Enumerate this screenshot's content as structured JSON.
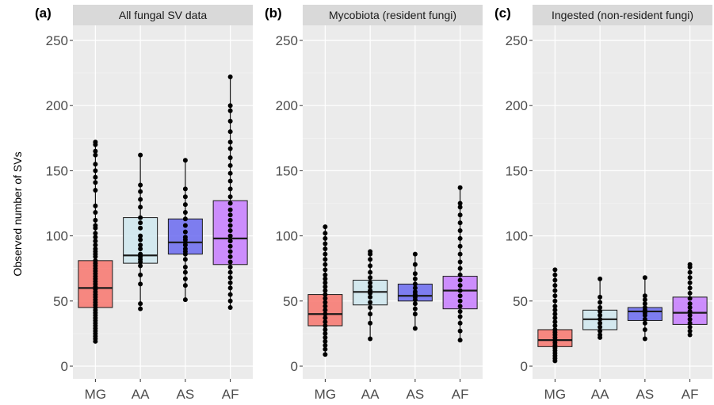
{
  "chart_data": [
    {
      "panel_tag": "(a)",
      "title": "All fungal SV data",
      "type": "box",
      "ylabel": "Observed number of SVs",
      "ylim": [
        0,
        260
      ],
      "y_ticks": [
        "0",
        "50",
        "100",
        "150",
        "200",
        "250"
      ],
      "categories": [
        "MG",
        "AA",
        "AS",
        "AF"
      ],
      "colors": [
        "#f8766d",
        "#cfe8ef",
        "#6a6af0",
        "#c77cff"
      ],
      "boxes": [
        {
          "category": "MG",
          "whisker_low": 19,
          "q1": 45,
          "median": 60,
          "q3": 81,
          "whisker_high": 172,
          "points": [
            19,
            21,
            23,
            25,
            27,
            29,
            31,
            33,
            35,
            37,
            39,
            41,
            43,
            45,
            47,
            49,
            51,
            53,
            55,
            57,
            59,
            61,
            63,
            65,
            67,
            69,
            71,
            73,
            75,
            77,
            79,
            81,
            84,
            86,
            88,
            90,
            93,
            96,
            99,
            102,
            106,
            108,
            112,
            118,
            123,
            135,
            141,
            145,
            150,
            155,
            162,
            165,
            170,
            172
          ]
        },
        {
          "category": "AA",
          "whisker_low": 44,
          "q1": 79,
          "median": 85,
          "q3": 114,
          "whisker_high": 162,
          "points": [
            44,
            48,
            63,
            70,
            77,
            80,
            82,
            84,
            86,
            90,
            93,
            97,
            100,
            106,
            110,
            114,
            122,
            128,
            134,
            139,
            162
          ]
        },
        {
          "category": "AS",
          "whisker_low": 51,
          "q1": 86,
          "median": 95,
          "q3": 113,
          "whisker_high": 158,
          "points": [
            51,
            62,
            67,
            72,
            76,
            82,
            86,
            88,
            90,
            93,
            95,
            97,
            99,
            103,
            108,
            113,
            118,
            124,
            130,
            136,
            158
          ]
        },
        {
          "category": "AF",
          "whisker_low": 45,
          "q1": 78,
          "median": 98,
          "q3": 127,
          "whisker_high": 222,
          "points": [
            45,
            50,
            55,
            60,
            64,
            68,
            72,
            76,
            80,
            84,
            88,
            92,
            96,
            100,
            104,
            108,
            112,
            116,
            120,
            125,
            130,
            136,
            142,
            148,
            154,
            160,
            167,
            172,
            180,
            188,
            196,
            200,
            222
          ]
        }
      ]
    },
    {
      "panel_tag": "(b)",
      "title": "Mycobiota (resident fungi)",
      "type": "box",
      "ylim": [
        0,
        260
      ],
      "y_ticks": [
        "0",
        "50",
        "100",
        "150",
        "200",
        "250"
      ],
      "categories": [
        "MG",
        "AA",
        "AS",
        "AF"
      ],
      "colors": [
        "#f8766d",
        "#cfe8ef",
        "#6a6af0",
        "#c77cff"
      ],
      "boxes": [
        {
          "category": "MG",
          "whisker_low": 9,
          "q1": 31,
          "median": 40,
          "q3": 55,
          "whisker_high": 107,
          "points": [
            9,
            13,
            16,
            19,
            22,
            25,
            28,
            31,
            34,
            37,
            40,
            43,
            46,
            49,
            52,
            55,
            58,
            61,
            64,
            67,
            70,
            74,
            78,
            82,
            86,
            90,
            94,
            98,
            102,
            107
          ]
        },
        {
          "category": "AA",
          "whisker_low": 21,
          "q1": 47,
          "median": 57,
          "q3": 66,
          "whisker_high": 88,
          "points": [
            21,
            33,
            40,
            45,
            49,
            53,
            56,
            58,
            61,
            64,
            68,
            72,
            77,
            82,
            86,
            88
          ]
        },
        {
          "category": "AS",
          "whisker_low": 29,
          "q1": 50,
          "median": 54,
          "q3": 63,
          "whisker_high": 86,
          "points": [
            29,
            40,
            44,
            48,
            51,
            53,
            55,
            57,
            60,
            63,
            67,
            71,
            78,
            86
          ]
        },
        {
          "category": "AF",
          "whisker_low": 20,
          "q1": 44,
          "median": 58,
          "q3": 69,
          "whisker_high": 137,
          "points": [
            20,
            27,
            33,
            38,
            42,
            46,
            50,
            54,
            58,
            62,
            66,
            70,
            75,
            80,
            86,
            92,
            98,
            104,
            110,
            116,
            122,
            125,
            137
          ]
        }
      ]
    },
    {
      "panel_tag": "(c)",
      "title": "Ingested (non-resident fungi)",
      "type": "box",
      "ylim": [
        0,
        260
      ],
      "y_ticks": [
        "0",
        "50",
        "100",
        "150",
        "200",
        "250"
      ],
      "categories": [
        "MG",
        "AA",
        "AS",
        "AF"
      ],
      "colors": [
        "#f8766d",
        "#cfe8ef",
        "#6a6af0",
        "#c77cff"
      ],
      "boxes": [
        {
          "category": "MG",
          "whisker_low": 4,
          "q1": 15,
          "median": 20,
          "q3": 28,
          "whisker_high": 74,
          "points": [
            4,
            6,
            8,
            10,
            12,
            14,
            16,
            18,
            20,
            22,
            24,
            26,
            28,
            31,
            34,
            37,
            40,
            43,
            46,
            50,
            54,
            58,
            62,
            66,
            70,
            74
          ]
        },
        {
          "category": "AA",
          "whisker_low": 22,
          "q1": 28,
          "median": 36,
          "q3": 43,
          "whisker_high": 67,
          "points": [
            22,
            24,
            27,
            30,
            33,
            36,
            39,
            42,
            45,
            49,
            53,
            67
          ]
        },
        {
          "category": "AS",
          "whisker_low": 21,
          "q1": 35,
          "median": 42,
          "q3": 45,
          "whisker_high": 68,
          "points": [
            21,
            28,
            33,
            36,
            39,
            41,
            43,
            45,
            48,
            51,
            54,
            68
          ]
        },
        {
          "category": "AF",
          "whisker_low": 24,
          "q1": 32,
          "median": 41,
          "q3": 53,
          "whisker_high": 78,
          "points": [
            24,
            27,
            30,
            33,
            36,
            39,
            42,
            45,
            48,
            52,
            56,
            60,
            64,
            68,
            72,
            76,
            78
          ]
        }
      ]
    }
  ]
}
